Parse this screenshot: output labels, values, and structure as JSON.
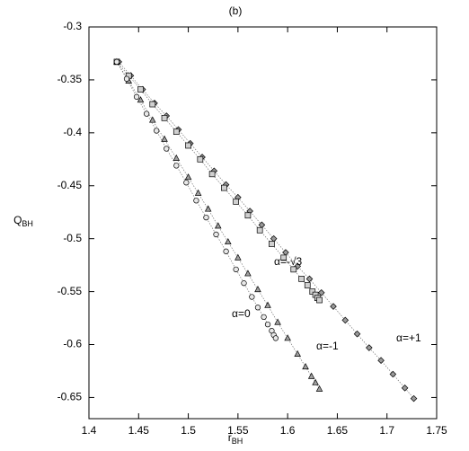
{
  "chart_data": {
    "type": "scatter",
    "title": "(b)",
    "xlabel": "r",
    "xlabel_subscript": "BH",
    "ylabel": "Q",
    "ylabel_subscript": "BH",
    "xlim": [
      1.4,
      1.75
    ],
    "ylim": [
      -0.67,
      -0.3
    ],
    "xticks": [
      1.4,
      1.45,
      1.5,
      1.55,
      1.6,
      1.65,
      1.7,
      1.75
    ],
    "yticks": [
      -0.3,
      -0.35,
      -0.4,
      -0.45,
      -0.5,
      -0.55,
      -0.6,
      -0.65
    ],
    "line_style": "dotted",
    "series": [
      {
        "name": "α=+1",
        "color": "#9a9a9a",
        "marker": "diamond",
        "x": [
          1.43,
          1.442,
          1.454,
          1.466,
          1.478,
          1.49,
          1.502,
          1.514,
          1.526,
          1.538,
          1.55,
          1.562,
          1.574,
          1.586,
          1.598,
          1.61,
          1.622,
          1.634,
          1.646,
          1.658,
          1.67,
          1.682,
          1.694,
          1.706,
          1.718,
          1.727
        ],
        "values": [
          -0.333,
          -0.346,
          -0.359,
          -0.372,
          -0.384,
          -0.397,
          -0.41,
          -0.423,
          -0.436,
          -0.449,
          -0.461,
          -0.474,
          -0.487,
          -0.5,
          -0.513,
          -0.526,
          -0.538,
          -0.551,
          -0.564,
          -0.577,
          -0.59,
          -0.603,
          -0.615,
          -0.628,
          -0.641,
          -0.651
        ]
      },
      {
        "name": "α=-√3",
        "color": "#d0d0d0",
        "marker": "square",
        "x": [
          1.428,
          1.44,
          1.452,
          1.464,
          1.476,
          1.488,
          1.5,
          1.512,
          1.524,
          1.536,
          1.548,
          1.56,
          1.572,
          1.584,
          1.596,
          1.606,
          1.614,
          1.62,
          1.625,
          1.628,
          1.63,
          1.632
        ],
        "values": [
          -0.333,
          -0.346,
          -0.359,
          -0.373,
          -0.386,
          -0.399,
          -0.412,
          -0.425,
          -0.439,
          -0.452,
          -0.465,
          -0.478,
          -0.492,
          -0.505,
          -0.518,
          -0.529,
          -0.538,
          -0.544,
          -0.55,
          -0.553,
          -0.556,
          -0.558
        ]
      },
      {
        "name": "α=0",
        "color": "#a0a0a0",
        "marker": "triangle",
        "x": [
          1.428,
          1.44,
          1.452,
          1.464,
          1.476,
          1.488,
          1.5,
          1.51,
          1.52,
          1.53,
          1.54,
          1.55,
          1.56,
          1.57,
          1.58,
          1.59,
          1.6,
          1.61,
          1.618,
          1.624,
          1.628,
          1.632
        ],
        "values": [
          -0.333,
          -0.351,
          -0.369,
          -0.388,
          -0.406,
          -0.424,
          -0.442,
          -0.457,
          -0.472,
          -0.488,
          -0.503,
          -0.518,
          -0.533,
          -0.548,
          -0.563,
          -0.579,
          -0.594,
          -0.609,
          -0.621,
          -0.63,
          -0.636,
          -0.642
        ]
      },
      {
        "name": "α=-1",
        "color": "#e8e8e8",
        "marker": "circle",
        "x": [
          1.428,
          1.438,
          1.448,
          1.458,
          1.468,
          1.478,
          1.488,
          1.498,
          1.508,
          1.518,
          1.528,
          1.538,
          1.548,
          1.556,
          1.564,
          1.57,
          1.576,
          1.58,
          1.584,
          1.586,
          1.588
        ],
        "values": [
          -0.333,
          -0.349,
          -0.366,
          -0.382,
          -0.398,
          -0.415,
          -0.431,
          -0.447,
          -0.464,
          -0.48,
          -0.496,
          -0.512,
          -0.529,
          -0.542,
          -0.555,
          -0.565,
          -0.574,
          -0.581,
          -0.587,
          -0.591,
          -0.594
        ]
      }
    ]
  }
}
